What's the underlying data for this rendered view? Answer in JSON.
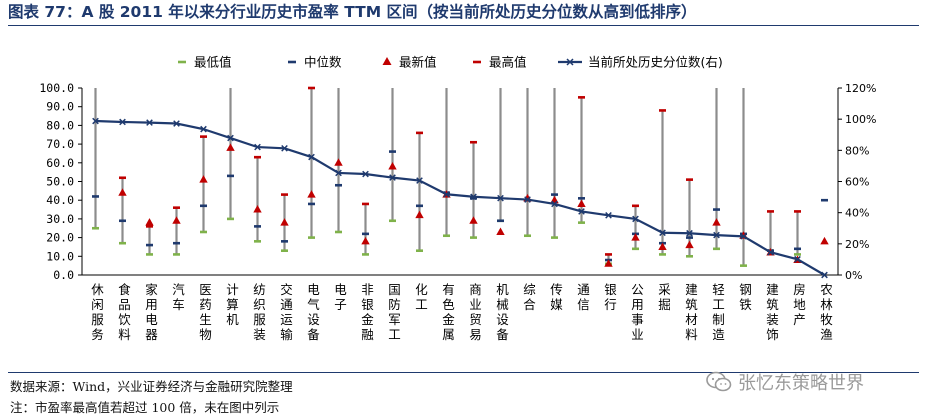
{
  "page": {
    "title": "图表 77：A 股 2011 年以来分行业历史市盈率 TTM 区间（按当前所处历史分位数从高到低排序）",
    "source": "数据来源：Wind，兴业证券经济与金融研究院整理",
    "note": "注：市盈率最高值若超过 100 倍，未在图中列示",
    "watermark": "张忆东策略世界"
  },
  "chart_data": {
    "type": "line",
    "title": "",
    "legend_position": "top",
    "legend": [
      "最低值",
      "中位数",
      "最新值",
      "最高值",
      "当前所处历史分位数(右)"
    ],
    "categories": [
      "休闲服务",
      "食品饮料",
      "家用电器",
      "汽车",
      "医药生物",
      "计算机",
      "纺织服装",
      "交通运输",
      "电气设备",
      "电子",
      "非银金融",
      "国防军工",
      "化工",
      "有色金属",
      "商业贸易",
      "机械设备",
      "综合",
      "传媒",
      "通信",
      "银行",
      "公用事业",
      "采掘",
      "建筑材料",
      "轻工制造",
      "钢铁",
      "建筑装饰",
      "房地产",
      "农林牧渔"
    ],
    "left_axis": {
      "min": 0,
      "max": 100,
      "ticks": [
        "0.0",
        "10.0",
        "20.0",
        "30.0",
        "40.0",
        "50.0",
        "60.0",
        "70.0",
        "80.0",
        "90.0",
        "100.0"
      ]
    },
    "right_axis": {
      "min": 0,
      "max": 120,
      "ticks": [
        "0%",
        "20%",
        "40%",
        "60%",
        "80%",
        "100%",
        "120%"
      ]
    },
    "series": [
      {
        "name": "最低值",
        "color": "#7fb24a",
        "marker": "dash",
        "values": [
          25,
          17,
          11,
          11,
          23,
          30,
          18,
          13,
          20,
          23,
          11,
          29,
          13,
          21,
          20,
          29,
          21,
          20,
          28,
          6,
          14,
          11,
          10,
          14,
          5,
          13,
          11,
          null
        ]
      },
      {
        "name": "中位数",
        "color": "#1f3a6e",
        "marker": "dash",
        "values": [
          42,
          29,
          16,
          17,
          37,
          53,
          26,
          18,
          38,
          48,
          22,
          66,
          37,
          44,
          41,
          29,
          40,
          43,
          41,
          8,
          22,
          17,
          20,
          35,
          22,
          13,
          14,
          40
        ]
      },
      {
        "name": "最新值",
        "color": "#c00000",
        "marker": "triangle",
        "values": [
          null,
          44,
          28,
          29,
          51,
          68,
          35,
          28,
          43,
          60,
          18,
          58,
          32,
          43,
          29,
          23,
          41,
          40,
          38,
          6,
          20,
          15,
          16,
          28,
          21,
          12,
          8,
          18
        ]
      },
      {
        "name": "最高值",
        "color": "#c00000",
        "marker": "dash",
        "values": [
          null,
          52,
          26,
          36,
          74,
          null,
          63,
          43,
          100,
          null,
          38,
          null,
          76,
          null,
          71,
          null,
          null,
          null,
          95,
          11,
          37,
          88,
          51,
          null,
          null,
          34,
          34,
          null
        ]
      },
      {
        "name": "当前所处历史分位数(右)",
        "color": "#1f3a6e",
        "marker": "x",
        "axis": "right",
        "values": [
          98.8,
          98.2,
          97.8,
          97.2,
          93.6,
          87.9,
          82.1,
          81.3,
          75.7,
          65.5,
          64.8,
          62.5,
          60.6,
          51.8,
          50.2,
          49.3,
          48.4,
          45.6,
          40.8,
          38.3,
          36.0,
          27.1,
          26.8,
          25.6,
          24.8,
          14.6,
          10.1,
          0.0
        ]
      }
    ]
  }
}
